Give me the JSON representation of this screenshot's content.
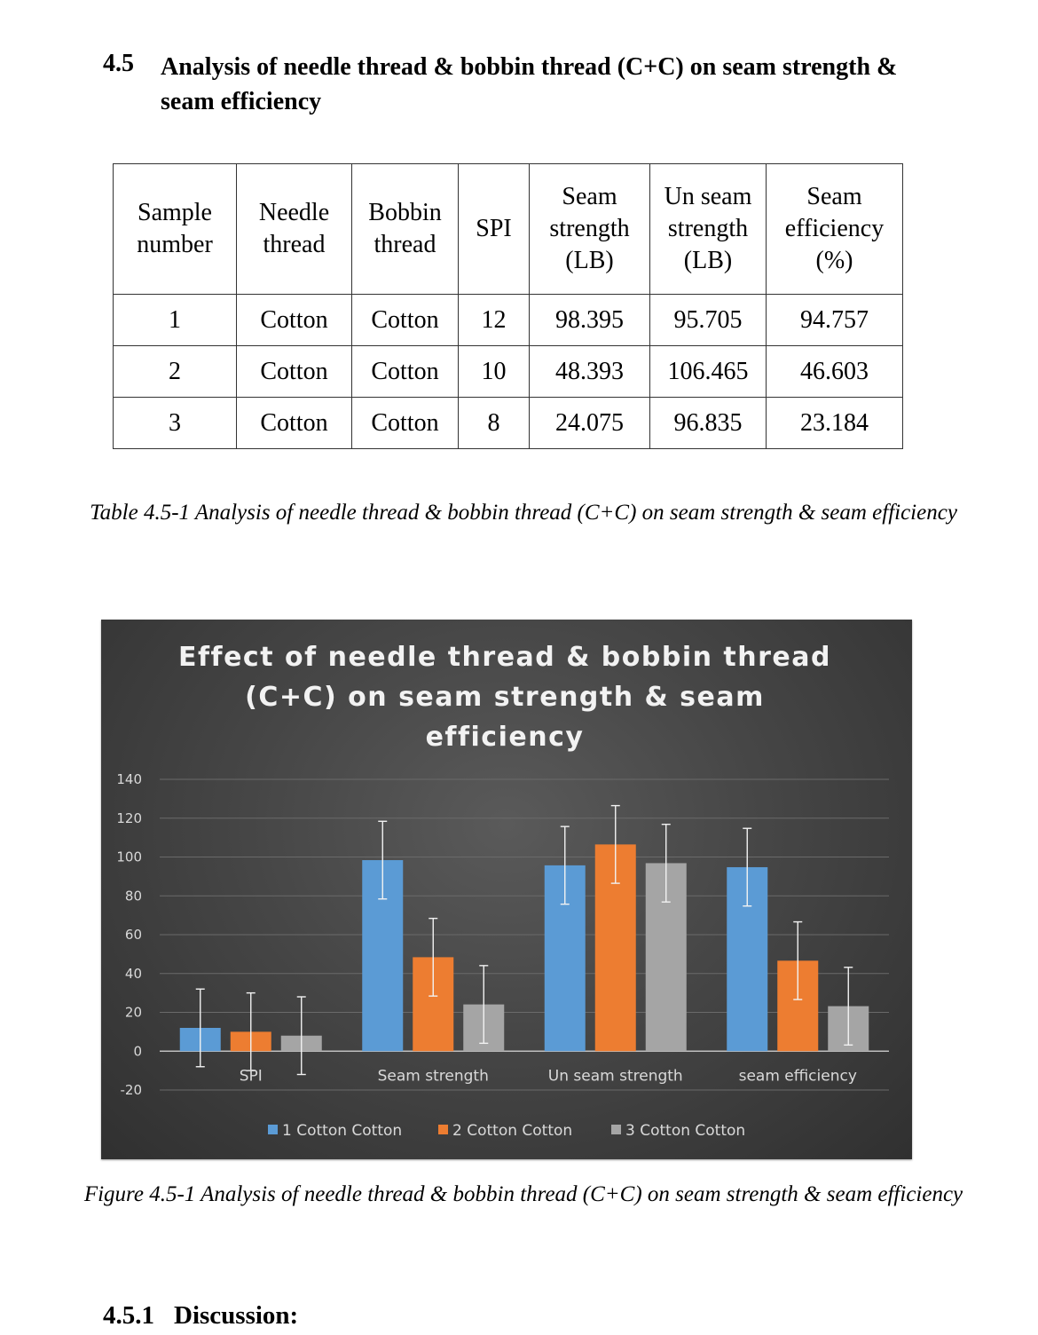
{
  "section": {
    "number": "4.5",
    "title": "Analysis of needle thread & bobbin thread (C+C) on seam strength & seam efficiency"
  },
  "table": {
    "headers": [
      "Sample number",
      "Needle thread",
      "Bobbin thread",
      "SPI",
      "Seam strength (LB)",
      "Un seam strength (LB)",
      "Seam efficiency (%)"
    ],
    "rows": [
      [
        "1",
        "Cotton",
        "Cotton",
        "12",
        "98.395",
        "95.705",
        "94.757"
      ],
      [
        "2",
        "Cotton",
        "Cotton",
        "10",
        "48.393",
        "106.465",
        "46.603"
      ],
      [
        "3",
        "Cotton",
        "Cotton",
        "8",
        "24.075",
        "96.835",
        "23.184"
      ]
    ],
    "caption": "Table 4.5-1 Analysis of needle thread & bobbin thread (C+C) on seam strength & seam efficiency"
  },
  "figure_caption": "Figure 4.5-1 Analysis of needle thread & bobbin thread (C+C) on seam strength & seam efficiency",
  "subsection": {
    "number": "4.5.1",
    "title": "Discussion:"
  },
  "chart_data": {
    "type": "bar",
    "title": "Effect of needle thread & bobbin thread (C+C)  on seam strength & seam efficiency",
    "categories": [
      "SPI",
      "Seam strength",
      "Un seam strength",
      "seam efficiency"
    ],
    "series": [
      {
        "name": "1 Cotton  Cotton",
        "color": "#5b9bd5",
        "values": [
          12,
          98.395,
          95.705,
          94.757
        ]
      },
      {
        "name": "2 Cotton  Cotton",
        "color": "#ed7d31",
        "values": [
          10,
          48.393,
          106.465,
          46.603
        ]
      },
      {
        "name": "3 Cotton  Cotton",
        "color": "#a5a5a5",
        "values": [
          8,
          24.075,
          96.835,
          23.184
        ]
      }
    ],
    "error_bar": 20,
    "ylim": [
      -20,
      140
    ],
    "yticks": [
      -20,
      0,
      20,
      40,
      60,
      80,
      100,
      120,
      140
    ],
    "grid": true,
    "legend_position": "bottom",
    "xlabel": "",
    "ylabel": ""
  }
}
